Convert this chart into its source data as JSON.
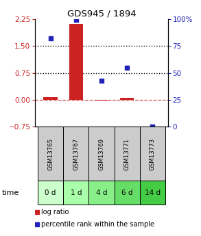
{
  "title": "GDS945 / 1894",
  "samples": [
    "GSM13765",
    "GSM13767",
    "GSM13769",
    "GSM13771",
    "GSM13773"
  ],
  "time_labels": [
    "0 d",
    "1 d",
    "4 d",
    "6 d",
    "14 d"
  ],
  "log_ratio": [
    0.07,
    2.1,
    -0.02,
    0.05,
    0.0
  ],
  "percentile_rank": [
    82,
    99,
    43,
    55,
    0
  ],
  "bar_color": "#cc2222",
  "dot_color": "#2222bb",
  "ylim_left": [
    -0.75,
    2.25
  ],
  "ylim_right": [
    0,
    100
  ],
  "yticks_left": [
    -0.75,
    0,
    0.75,
    1.5,
    2.25
  ],
  "yticks_right": [
    0,
    25,
    50,
    75,
    100
  ],
  "hline_y": [
    0.75,
    1.5
  ],
  "background_color": "#ffffff",
  "sample_box_color": "#cccccc",
  "time_box_colors": [
    "#ccffcc",
    "#aaffaa",
    "#88ee88",
    "#66dd66",
    "#44cc44"
  ],
  "legend_bar_label": "log ratio",
  "legend_dot_label": "percentile rank within the sample",
  "x_positions": [
    0,
    1,
    2,
    3,
    4
  ]
}
